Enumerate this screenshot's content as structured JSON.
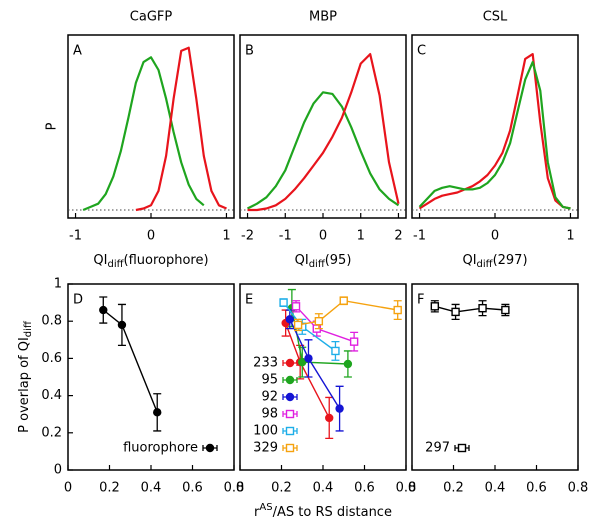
{
  "chart_data": [
    {
      "type": "line",
      "title": "CaGFP",
      "label": "A",
      "ylabel": "P",
      "xlabel": [
        "QI",
        "diff",
        "(fluorophore)"
      ],
      "xlim": [
        -1.1,
        1.1
      ],
      "xticks": [
        -1,
        0,
        1
      ],
      "ylim": [
        -0.05,
        1.1
      ],
      "hline": 0,
      "series": [
        {
          "color": "#1fa51f",
          "x": [
            -0.9,
            -0.8,
            -0.7,
            -0.6,
            -0.5,
            -0.4,
            -0.3,
            -0.2,
            -0.1,
            0,
            0.1,
            0.2,
            0.3,
            0.4,
            0.5,
            0.6,
            0.7
          ],
          "values": [
            0.0,
            0.02,
            0.04,
            0.1,
            0.21,
            0.37,
            0.58,
            0.8,
            0.93,
            0.96,
            0.88,
            0.7,
            0.49,
            0.3,
            0.16,
            0.07,
            0.03
          ]
        },
        {
          "color": "#e8141c",
          "x": [
            -0.2,
            -0.1,
            0,
            0.1,
            0.2,
            0.3,
            0.4,
            0.5,
            0.6,
            0.7,
            0.8,
            0.9,
            1.0
          ],
          "values": [
            0.0,
            0.01,
            0.03,
            0.12,
            0.34,
            0.7,
            1.0,
            1.02,
            0.7,
            0.34,
            0.12,
            0.03,
            0.01
          ]
        }
      ]
    },
    {
      "type": "line",
      "title": "MBP",
      "label": "B",
      "xlabel": [
        "QI",
        "diff",
        "(95)"
      ],
      "xlim": [
        -2.2,
        2.2
      ],
      "xticks": [
        -2,
        -1,
        0,
        1,
        2
      ],
      "ylim": [
        -0.05,
        1.1
      ],
      "hline": 0,
      "series": [
        {
          "color": "#1fa51f",
          "x": [
            -2,
            -1.75,
            -1.5,
            -1.25,
            -1,
            -0.75,
            -0.5,
            -0.25,
            0,
            0.25,
            0.5,
            0.75,
            1,
            1.25,
            1.5,
            1.75,
            2
          ],
          "values": [
            0.01,
            0.04,
            0.08,
            0.15,
            0.25,
            0.4,
            0.55,
            0.67,
            0.74,
            0.73,
            0.65,
            0.52,
            0.37,
            0.23,
            0.13,
            0.07,
            0.03
          ]
        },
        {
          "color": "#e8141c",
          "x": [
            -2,
            -1.75,
            -1.5,
            -1.25,
            -1,
            -0.75,
            -0.5,
            -0.25,
            0,
            0.25,
            0.5,
            0.75,
            1,
            1.25,
            1.5,
            1.75,
            2
          ],
          "values": [
            0.0,
            0.0,
            0.01,
            0.03,
            0.07,
            0.13,
            0.2,
            0.28,
            0.36,
            0.46,
            0.58,
            0.74,
            0.92,
            0.98,
            0.72,
            0.3,
            0.04
          ]
        }
      ]
    },
    {
      "type": "line",
      "title": "CSL",
      "label": "C",
      "xlabel": [
        "QI",
        "diff",
        "(297)"
      ],
      "xlim": [
        -1.1,
        1.1
      ],
      "xticks": [
        -1,
        0,
        1
      ],
      "ylim": [
        -0.05,
        1.1
      ],
      "hline": 0,
      "series": [
        {
          "color": "#e8141c",
          "x": [
            -1,
            -0.9,
            -0.8,
            -0.7,
            -0.6,
            -0.5,
            -0.4,
            -0.3,
            -0.2,
            -0.1,
            0,
            0.1,
            0.2,
            0.3,
            0.4,
            0.5,
            0.6,
            0.7,
            0.8,
            0.9,
            1
          ],
          "values": [
            0.01,
            0.04,
            0.07,
            0.09,
            0.1,
            0.11,
            0.13,
            0.15,
            0.18,
            0.22,
            0.28,
            0.36,
            0.5,
            0.72,
            0.95,
            0.98,
            0.55,
            0.2,
            0.06,
            0.02,
            0.01
          ]
        },
        {
          "color": "#1fa51f",
          "x": [
            -1,
            -0.9,
            -0.8,
            -0.7,
            -0.6,
            -0.5,
            -0.4,
            -0.3,
            -0.2,
            -0.1,
            0,
            0.1,
            0.2,
            0.3,
            0.4,
            0.5,
            0.6,
            0.7,
            0.8,
            0.9,
            1
          ],
          "values": [
            0.02,
            0.07,
            0.12,
            0.14,
            0.15,
            0.14,
            0.13,
            0.13,
            0.14,
            0.17,
            0.22,
            0.3,
            0.42,
            0.62,
            0.82,
            0.93,
            0.75,
            0.3,
            0.08,
            0.02,
            0.01
          ]
        }
      ]
    },
    {
      "type": "errorbar",
      "label": "D",
      "ylabel": [
        "P overlap of QI",
        "diff"
      ],
      "xlim": [
        0,
        0.8
      ],
      "xticks": [
        0,
        0.2,
        0.4,
        0.6,
        0.8
      ],
      "ylim": [
        0,
        1
      ],
      "yticks": [
        0,
        0.2,
        0.4,
        0.6,
        0.8,
        1
      ],
      "legend": "lower right",
      "series": [
        {
          "name": "fluorophore",
          "color": "#000000",
          "marker": "circle",
          "filled": true,
          "x": [
            0.17,
            0.26,
            0.43
          ],
          "values": [
            0.86,
            0.78,
            0.31
          ],
          "errors": [
            0.07,
            0.11,
            0.1
          ]
        }
      ]
    },
    {
      "type": "errorbar",
      "label": "E",
      "xlabel": [
        "r",
        "AS",
        "/AS to RS distance"
      ],
      "xlim": [
        0,
        0.8
      ],
      "xticks": [
        0,
        0.2,
        0.4,
        0.6,
        0.8
      ],
      "ylim": [
        0,
        1
      ],
      "legend": "lower left",
      "series": [
        {
          "name": "233",
          "color": "#e8141c",
          "marker": "circle",
          "filled": true,
          "x": [
            0.22,
            0.29,
            0.43
          ],
          "values": [
            0.79,
            0.58,
            0.28
          ],
          "errors": [
            0.07,
            0.09,
            0.11
          ]
        },
        {
          "name": "95",
          "color": "#1fa51f",
          "marker": "circle",
          "filled": true,
          "x": [
            0.25,
            0.3,
            0.52
          ],
          "values": [
            0.87,
            0.58,
            0.57
          ],
          "errors": [
            0.1,
            0.08,
            0.07
          ]
        },
        {
          "name": "92",
          "color": "#1515d4",
          "marker": "circle",
          "filled": true,
          "x": [
            0.24,
            0.33,
            0.48
          ],
          "values": [
            0.81,
            0.6,
            0.33
          ],
          "errors": [
            0.05,
            0.1,
            0.12
          ]
        },
        {
          "name": "98",
          "color": "#e020e0",
          "marker": "square",
          "filled": false,
          "x": [
            0.27,
            0.37,
            0.55
          ],
          "values": [
            0.88,
            0.76,
            0.69
          ],
          "errors": [
            0.03,
            0.04,
            0.05
          ]
        },
        {
          "name": "100",
          "color": "#1eaee8",
          "marker": "square",
          "filled": false,
          "x": [
            0.21,
            0.3,
            0.46
          ],
          "values": [
            0.9,
            0.77,
            0.64
          ],
          "errors": [
            0.02,
            0.04,
            0.05
          ]
        },
        {
          "name": "329",
          "color": "#f5a20f",
          "marker": "square",
          "filled": false,
          "x": [
            0.28,
            0.38,
            0.5,
            0.76
          ],
          "values": [
            0.78,
            0.8,
            0.91,
            0.86
          ],
          "errors": [
            0.03,
            0.04,
            0.02,
            0.05
          ]
        }
      ]
    },
    {
      "type": "errorbar",
      "label": "F",
      "xlim": [
        0,
        0.8
      ],
      "xticks": [
        0,
        0.2,
        0.4,
        0.6,
        0.8
      ],
      "ylim": [
        0,
        1
      ],
      "legend": "lower left",
      "series": [
        {
          "name": "297",
          "color": "#000000",
          "marker": "square",
          "filled": false,
          "x": [
            0.11,
            0.21,
            0.34,
            0.45
          ],
          "values": [
            0.88,
            0.85,
            0.87,
            0.86
          ],
          "errors": [
            0.03,
            0.04,
            0.04,
            0.03
          ]
        }
      ]
    }
  ]
}
